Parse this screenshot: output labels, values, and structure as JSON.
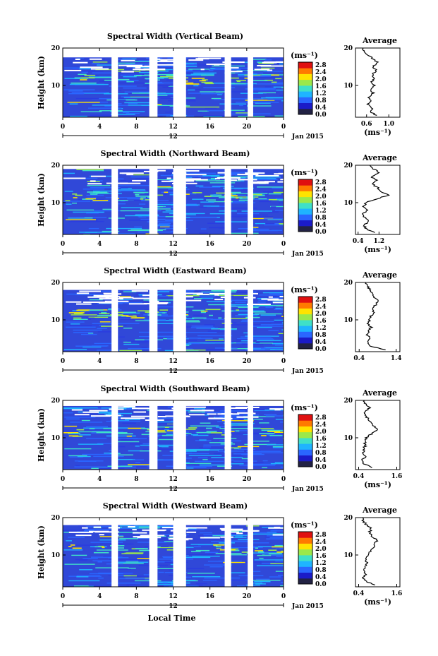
{
  "figure": {
    "xlabel": "Local Time",
    "date_label": "Jan 2015",
    "colorbar_label": "(ms⁻¹)",
    "colorbar_ticks": [
      "2.8",
      "2.4",
      "2.0",
      "1.6",
      "1.2",
      "0.8",
      "0.4",
      "0.0"
    ],
    "colorbar_colors": [
      "#222244",
      "#1b1bc8",
      "#2a66ff",
      "#1fb4ff",
      "#3fe0c8",
      "#9be84a",
      "#ffe300",
      "#ff7a00",
      "#e01010"
    ],
    "heatmap_bg": "#3048d8",
    "heatmap_band_colors": [
      "#2a66ff",
      "#1fb4ff",
      "#3fe0c8",
      "#2a3ce0",
      "#9be84a",
      "#ffe300",
      "#ff7a00"
    ],
    "time_ticks": [
      "0",
      "4",
      "8",
      "12",
      "16",
      "20",
      "0"
    ],
    "day_marker": "12",
    "height_ticks": [
      "20",
      "10"
    ],
    "ylabel": "Height (km)",
    "avg_title": "Average"
  },
  "chart_data": [
    {
      "type": "heatmap",
      "title": "Spectral Width (Vertical Beam)",
      "xlabel": "",
      "ylabel": "Height (km)",
      "x_range_hours": [
        0,
        24
      ],
      "y_range_km": [
        1.5,
        20
      ],
      "data_gaps_hours": [
        [
          5.3,
          6.0
        ],
        [
          9.4,
          10.3
        ],
        [
          12.0,
          13.4
        ],
        [
          17.6,
          18.3
        ],
        [
          20.1,
          20.7
        ]
      ],
      "top_data_km": 17.5,
      "profile": {
        "title": "Average",
        "xlabel": "(ms⁻¹)",
        "xlim": [
          0.4,
          1.2
        ],
        "xtick_labels": [
          "0.6",
          "1.0"
        ],
        "height_km": [
          2,
          3,
          4,
          5,
          6,
          7,
          8,
          9,
          10,
          11,
          12,
          13,
          14,
          15,
          16,
          17,
          18,
          19,
          20
        ],
        "values": [
          0.78,
          0.66,
          0.7,
          0.62,
          0.68,
          0.64,
          0.72,
          0.66,
          0.74,
          0.7,
          0.75,
          0.7,
          0.78,
          0.72,
          0.8,
          0.74,
          0.62,
          0.56,
          0.54
        ]
      }
    },
    {
      "type": "heatmap",
      "title": "Spectral Width (Northward Beam)",
      "xlabel": "",
      "ylabel": "Height (km)",
      "x_range_hours": [
        0,
        24
      ],
      "y_range_km": [
        1.5,
        20
      ],
      "data_gaps_hours": [
        [
          5.3,
          6.0
        ],
        [
          9.4,
          10.3
        ],
        [
          12.0,
          13.4
        ],
        [
          17.6,
          18.3
        ],
        [
          20.1,
          20.7
        ]
      ],
      "top_data_km": 19.0,
      "profile": {
        "title": "Average",
        "xlabel": "(ms⁻¹)",
        "xlim": [
          0.3,
          2.0
        ],
        "xtick_labels": [
          "0.4",
          "1.2"
        ],
        "height_km": [
          2,
          3,
          4,
          5,
          6,
          7,
          8,
          9,
          10,
          11,
          12,
          13,
          14,
          15,
          16,
          17,
          18,
          19,
          20
        ],
        "values": [
          1.05,
          0.7,
          0.62,
          0.8,
          0.66,
          0.6,
          0.78,
          0.62,
          0.7,
          1.1,
          1.55,
          1.25,
          1.15,
          0.95,
          1.1,
          0.9,
          1.2,
          1.0,
          0.85
        ]
      }
    },
    {
      "type": "heatmap",
      "title": "Spectral Width (Eastward Beam)",
      "xlabel": "",
      "ylabel": "",
      "x_range_hours": [
        0,
        24
      ],
      "y_range_km": [
        1.5,
        20
      ],
      "data_gaps_hours": [
        [
          5.3,
          6.0
        ],
        [
          9.4,
          10.3
        ],
        [
          12.0,
          13.4
        ],
        [
          17.6,
          18.3
        ],
        [
          20.1,
          20.7
        ]
      ],
      "top_data_km": 18.0,
      "profile": {
        "title": "Average",
        "xlabel": "",
        "xlim": [
          0.3,
          1.5
        ],
        "xtick_labels": [
          "0.4",
          "1.4"
        ],
        "height_km": [
          2,
          3,
          4,
          5,
          6,
          7,
          8,
          9,
          10,
          11,
          12,
          13,
          14,
          15,
          16,
          17,
          18,
          19,
          20
        ],
        "values": [
          1.1,
          0.72,
          0.62,
          0.7,
          0.6,
          0.66,
          0.72,
          0.64,
          0.68,
          0.72,
          0.8,
          0.74,
          0.85,
          0.92,
          0.8,
          0.78,
          0.7,
          0.62,
          0.58
        ]
      }
    },
    {
      "type": "heatmap",
      "title": "Spectral Width (Southward Beam)",
      "xlabel": "",
      "ylabel": "Height (km)",
      "x_range_hours": [
        0,
        24
      ],
      "y_range_km": [
        1.5,
        20
      ],
      "data_gaps_hours": [
        [
          5.3,
          6.0
        ],
        [
          9.4,
          10.3
        ],
        [
          12.0,
          13.4
        ],
        [
          17.6,
          18.3
        ],
        [
          20.1,
          20.7
        ]
      ],
      "top_data_km": 18.5,
      "profile": {
        "title": "Average",
        "xlabel": "(ms⁻¹)",
        "xlim": [
          0.3,
          1.7
        ],
        "xtick_labels": [
          "0.4",
          "1.6"
        ],
        "height_km": [
          2,
          3,
          4,
          5,
          6,
          7,
          8,
          9,
          10,
          11,
          12,
          13,
          14,
          15,
          16,
          17,
          18,
          19,
          20
        ],
        "values": [
          0.85,
          0.58,
          0.52,
          0.6,
          0.56,
          0.55,
          0.62,
          0.58,
          0.64,
          0.8,
          1.0,
          0.9,
          0.78,
          0.7,
          0.62,
          0.58,
          0.75,
          0.62,
          0.58
        ]
      }
    },
    {
      "type": "heatmap",
      "title": "Spectral Width (Westward Beam)",
      "xlabel": "Local Time",
      "ylabel": "Height (km)",
      "x_range_hours": [
        0,
        24
      ],
      "y_range_km": [
        1.5,
        20
      ],
      "data_gaps_hours": [
        [
          5.3,
          6.0
        ],
        [
          9.4,
          10.3
        ],
        [
          12.0,
          13.4
        ],
        [
          17.6,
          18.3
        ],
        [
          20.1,
          20.7
        ]
      ],
      "top_data_km": 18.0,
      "profile": {
        "title": "Average",
        "xlabel": "(ms⁻¹)",
        "xlim": [
          0.3,
          1.7
        ],
        "xtick_labels": [
          "0.4",
          "1.6"
        ],
        "height_km": [
          2,
          3,
          4,
          5,
          6,
          7,
          8,
          9,
          10,
          11,
          12,
          13,
          14,
          15,
          16,
          17,
          18,
          19,
          20
        ],
        "values": [
          0.9,
          0.62,
          0.56,
          0.62,
          0.58,
          0.6,
          0.66,
          0.62,
          0.7,
          0.76,
          0.85,
          0.9,
          0.98,
          0.8,
          0.74,
          0.8,
          0.66,
          0.55,
          0.52
        ]
      }
    }
  ]
}
